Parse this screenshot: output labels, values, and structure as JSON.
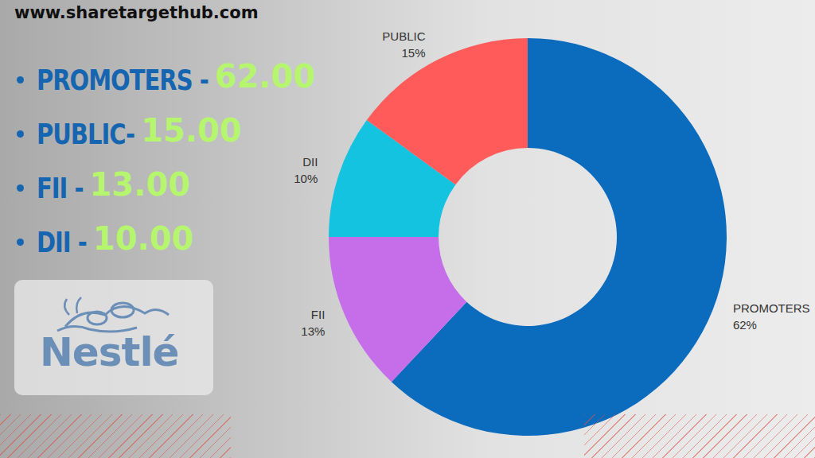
{
  "header": {
    "url": "www.sharetargethub.com"
  },
  "summary": [
    {
      "label": "PROMOTERS -",
      "value": "62.00"
    },
    {
      "label": "PUBLIC-",
      "value": "15.00"
    },
    {
      "label": "FII -",
      "value": "13.00"
    },
    {
      "label": "DII -",
      "value": "10.00"
    }
  ],
  "logo": {
    "text": "Nestlé"
  },
  "chart_data": {
    "type": "pie",
    "categories": [
      "PROMOTERS",
      "FII",
      "DII",
      "PUBLIC"
    ],
    "values": [
      62,
      13,
      10,
      15
    ],
    "value_labels": [
      "62%",
      "13%",
      "10%",
      "15%"
    ],
    "colors": [
      "#0b6bbd",
      "#c66ee9",
      "#14c3df",
      "#ff5b5b"
    ],
    "data_labels": true
  }
}
